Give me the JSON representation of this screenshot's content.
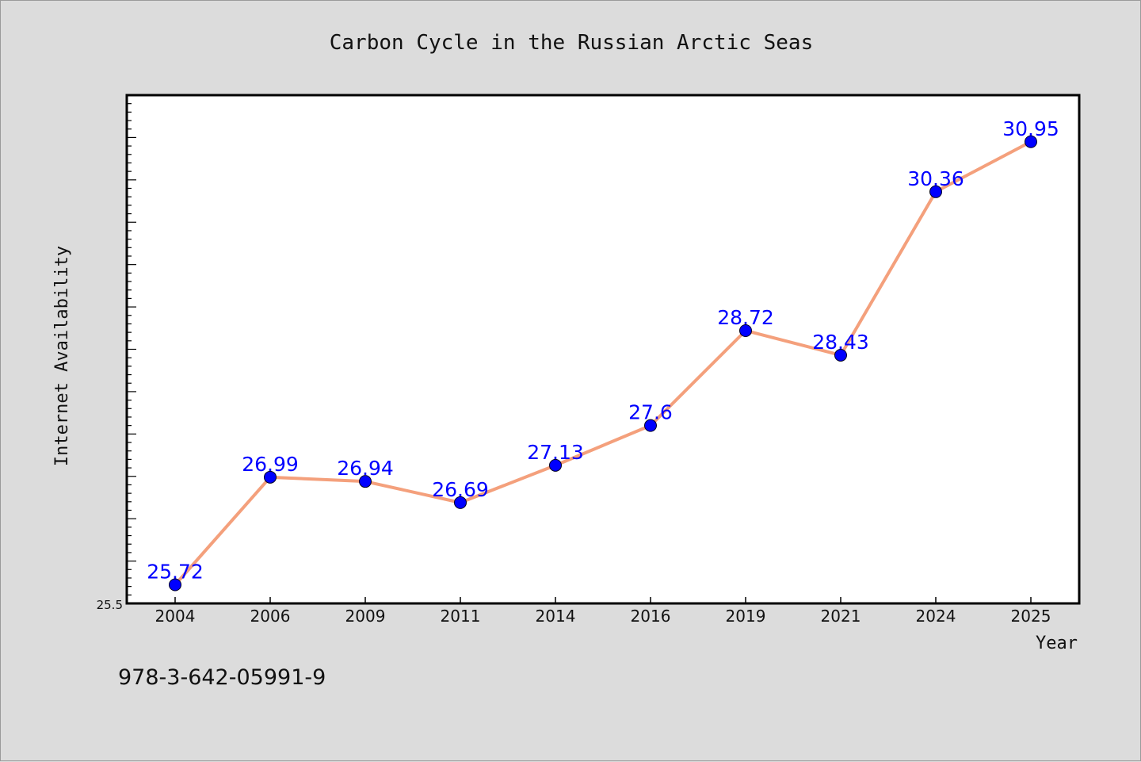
{
  "footer_code": "978-3-642-05991-9",
  "colors": {
    "line": "#f4a07c",
    "marker": "#0000ff",
    "label": "#0000ff",
    "background": "#dcdcdc",
    "plot": "#ffffff"
  },
  "chart_data": {
    "type": "line",
    "title": "Carbon Cycle in the Russian Arctic Seas",
    "xlabel": "Year",
    "ylabel": "Internet Availability",
    "categories": [
      "2004",
      "2006",
      "2009",
      "2011",
      "2014",
      "2016",
      "2019",
      "2021",
      "2024",
      "2025"
    ],
    "values": [
      25.72,
      26.99,
      26.94,
      26.69,
      27.13,
      27.6,
      28.72,
      28.43,
      30.36,
      30.95
    ],
    "data_labels": [
      "25.72",
      "26.99",
      "26.94",
      "26.69",
      "27.13",
      "27.6",
      "28.72",
      "28.43",
      "30.36",
      "30.95"
    ],
    "ylim": [
      25.5,
      31.5
    ],
    "y_tick_labels": [
      "25.5"
    ],
    "grid": false,
    "legend": "none"
  }
}
